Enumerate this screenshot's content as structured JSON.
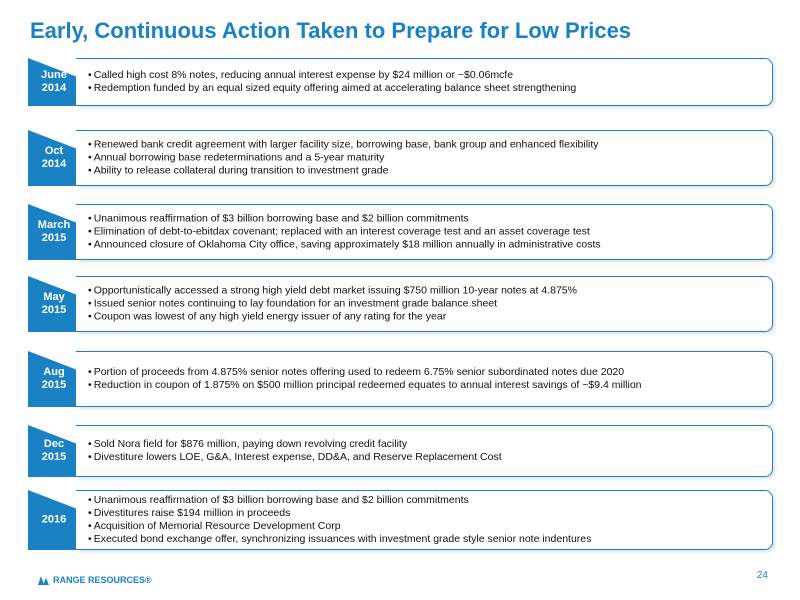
{
  "title": "Early, Continuous Action Taken to Prepare for Low Prices",
  "timeline": [
    {
      "label": [
        "June",
        "2014"
      ],
      "bullets": [
        "Called high cost 8% notes, reducing annual interest expense by $24 million or ~$0.06mcfe",
        "Redemption funded by an equal sized equity offering aimed at accelerating balance sheet strengthening"
      ]
    },
    {
      "label": [
        "Oct",
        "2014"
      ],
      "bullets": [
        "Renewed bank credit agreement with larger facility size, borrowing base, bank group and enhanced flexibility",
        "Annual borrowing base redeterminations and a 5-year maturity",
        "Ability to release collateral during transition to investment grade"
      ]
    },
    {
      "label": [
        "March",
        "2015"
      ],
      "bullets": [
        "Unanimous reaffirmation of $3 billion borrowing base and $2 billion commitments",
        "Elimination of debt-to-ebitdax covenant; replaced with an interest coverage test and an asset coverage test",
        "Announced closure of Oklahoma City office, saving approximately $18 million annually in administrative costs"
      ]
    },
    {
      "label": [
        "May",
        "2015"
      ],
      "bullets": [
        "Opportunistically accessed a strong high yield debt market issuing $750 million 10-year notes at 4.875%",
        "Issued senior notes continuing to lay foundation for an investment grade balance sheet",
        "Coupon was lowest of any high yield energy issuer of any rating for the year"
      ]
    },
    {
      "label": [
        "Aug",
        "2015"
      ],
      "bullets": [
        "Portion of proceeds from 4.875% senior notes offering used to redeem 6.75% senior subordinated notes due 2020",
        "Reduction in coupon of 1.875% on $500 million principal redeemed equates to annual interest savings of ~$9.4 million"
      ]
    },
    {
      "label": [
        "Dec",
        "2015"
      ],
      "bullets": [
        "Sold Nora field for $876 million, paying down revolving credit facility",
        "Divestiture lowers LOE, G&A, Interest expense, DD&A, and Reserve Replacement Cost"
      ]
    },
    {
      "label": [
        "2016"
      ],
      "bullets": [
        "Unanimous reaffirmation of $3 billion borrowing base and $2 billion commitments",
        "Divestitures raise $194 million in proceeds",
        "Acquisition of Memorial Resource Development Corp",
        "Executed bond exchange offer, synchronizing issuances with investment grade style senior note indentures"
      ]
    }
  ],
  "footer": {
    "logo_text": "RANGE RESOURCES®",
    "logo_icon": "range-resources-logo-icon",
    "page_number": "24"
  },
  "colors": {
    "accent": "#1a82c4",
    "text": "#111111"
  }
}
